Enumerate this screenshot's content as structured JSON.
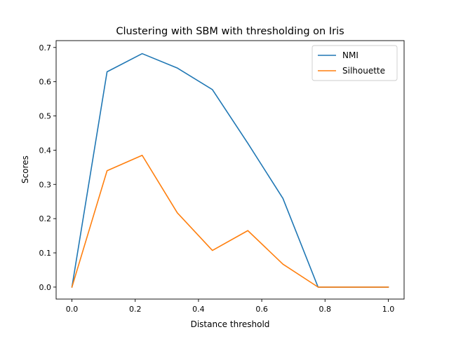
{
  "chart_data": {
    "type": "line",
    "title": "Clustering with SBM with thresholding on Iris",
    "xlabel": "Distance threshold",
    "ylabel": "Scores",
    "xlim": [
      -0.05,
      1.05
    ],
    "ylim": [
      -0.035,
      0.72
    ],
    "x_ticks": [
      0.0,
      0.2,
      0.4,
      0.6,
      0.8,
      1.0
    ],
    "x_tick_labels": [
      "0.0",
      "0.2",
      "0.4",
      "0.6",
      "0.8",
      "1.0"
    ],
    "y_ticks": [
      0.0,
      0.1,
      0.2,
      0.3,
      0.4,
      0.5,
      0.6,
      0.7
    ],
    "y_tick_labels": [
      "0.0",
      "0.1",
      "0.2",
      "0.3",
      "0.4",
      "0.5",
      "0.6",
      "0.7"
    ],
    "x": [
      0.0,
      0.111,
      0.222,
      0.333,
      0.444,
      0.556,
      0.667,
      0.778,
      0.889,
      1.0
    ],
    "series": [
      {
        "name": "NMI",
        "color": "#1f77b4",
        "values": [
          0.0,
          0.629,
          0.682,
          0.64,
          0.577,
          0.42,
          0.259,
          0.0,
          0.0,
          0.0
        ]
      },
      {
        "name": "Silhouette",
        "color": "#ff7f0e",
        "values": [
          0.0,
          0.34,
          0.385,
          0.217,
          0.107,
          0.165,
          0.067,
          0.0,
          0.0,
          0.0
        ]
      }
    ],
    "grid": false,
    "legend_position": "top-right"
  }
}
